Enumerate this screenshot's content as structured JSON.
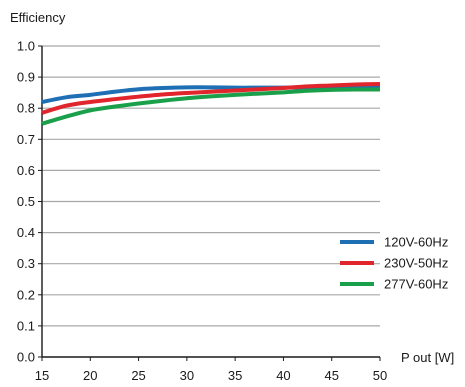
{
  "chart_data": {
    "type": "line",
    "ylabel": "Efficiency",
    "xlabel": "P out [W]",
    "xlim": [
      15,
      50
    ],
    "ylim": [
      0.0,
      1.0
    ],
    "x_ticks": [
      "15",
      "20",
      "25",
      "30",
      "35",
      "40",
      "45",
      "50"
    ],
    "y_ticks": [
      "0.0",
      "0.1",
      "0.2",
      "0.3",
      "0.4",
      "0.5",
      "0.6",
      "0.7",
      "0.8",
      "0.9",
      "1.0"
    ],
    "grid": "horizontal",
    "legend_position": "right",
    "series": [
      {
        "name": "120V-60Hz",
        "color": "#1f6fb5",
        "x": [
          15,
          17.5,
          20,
          22.5,
          25,
          27.5,
          30,
          32.5,
          35,
          37.5,
          40,
          42.5,
          45,
          47.5,
          50
        ],
        "y": [
          0.82,
          0.835,
          0.843,
          0.853,
          0.861,
          0.865,
          0.867,
          0.867,
          0.866,
          0.866,
          0.866,
          0.867,
          0.868,
          0.869,
          0.87
        ]
      },
      {
        "name": "230V-50Hz",
        "color": "#e0262c",
        "x": [
          15,
          17.5,
          20,
          22.5,
          25,
          27.5,
          30,
          32.5,
          35,
          37.5,
          40,
          42.5,
          45,
          47.5,
          50
        ],
        "y": [
          0.785,
          0.808,
          0.82,
          0.829,
          0.837,
          0.844,
          0.849,
          0.853,
          0.857,
          0.861,
          0.865,
          0.87,
          0.873,
          0.876,
          0.878
        ]
      },
      {
        "name": "277V-60Hz",
        "color": "#1aa04a",
        "x": [
          15,
          17.5,
          20,
          22.5,
          25,
          27.5,
          30,
          32.5,
          35,
          37.5,
          40,
          42.5,
          45,
          47.5,
          50
        ],
        "y": [
          0.75,
          0.773,
          0.793,
          0.805,
          0.815,
          0.824,
          0.832,
          0.838,
          0.843,
          0.847,
          0.851,
          0.856,
          0.859,
          0.86,
          0.86
        ]
      }
    ]
  }
}
